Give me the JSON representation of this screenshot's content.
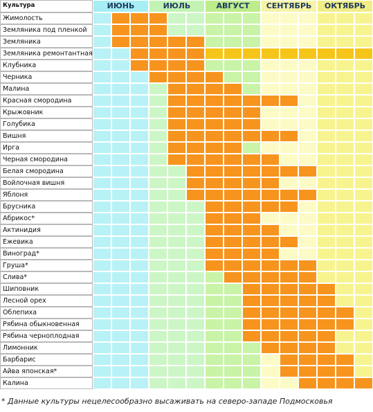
{
  "table": {
    "header": "Культура",
    "months": [
      {
        "name": "ИЮНЬ",
        "color": "#b8f2f6",
        "header_color": "#a6eef4"
      },
      {
        "name": "ИЮЛЬ",
        "color": "#cdf6c6",
        "header_color": "#c2f3b4"
      },
      {
        "name": "АВГУСТ",
        "color": "#c9f3a6",
        "header_color": "#bdec8c"
      },
      {
        "name": "СЕНТЯБРЬ",
        "color": "#fcfbc6",
        "header_color": "#f6f3a6"
      },
      {
        "name": "ОКТЯБРЬ",
        "color": "#f7f48f",
        "header_color": "#f2ee86"
      }
    ],
    "harvest_color": "#f7941d",
    "second_harvest_color": "#f6c51a",
    "rows": [
      {
        "name": "Жимолость",
        "harvest": [
          1,
          3
        ]
      },
      {
        "name": "Земляника под пленкой",
        "harvest": [
          1,
          3
        ]
      },
      {
        "name": "Земляника",
        "harvest": [
          1,
          5
        ]
      },
      {
        "name": "Земляника ремонтантная",
        "harvest": [
          2,
          5
        ],
        "second_harvest": [
          6,
          14
        ]
      },
      {
        "name": "Клубника",
        "harvest": [
          2,
          5
        ]
      },
      {
        "name": "Черника",
        "harvest": [
          3,
          6
        ]
      },
      {
        "name": "Малина",
        "harvest": [
          4,
          7
        ]
      },
      {
        "name": "Красная смородина",
        "harvest": [
          4,
          10
        ]
      },
      {
        "name": "Крыжовник",
        "harvest": [
          4,
          8
        ]
      },
      {
        "name": "Голубика",
        "harvest": [
          4,
          8
        ]
      },
      {
        "name": "Вишня",
        "harvest": [
          4,
          10
        ]
      },
      {
        "name": "Ирга",
        "harvest": [
          4,
          7
        ]
      },
      {
        "name": "Черная смородина",
        "harvest": [
          4,
          9
        ]
      },
      {
        "name": "Белая смородина",
        "harvest": [
          5,
          11
        ]
      },
      {
        "name": "Войлочная вишня",
        "harvest": [
          5,
          9
        ]
      },
      {
        "name": "Яблоня",
        "harvest": [
          5,
          11
        ]
      },
      {
        "name": "Брусника",
        "harvest": [
          6,
          10
        ]
      },
      {
        "name": "Абрикос*",
        "harvest": [
          6,
          8
        ]
      },
      {
        "name": "Актинидия",
        "harvest": [
          6,
          9
        ]
      },
      {
        "name": "Ежевика",
        "harvest": [
          6,
          10
        ]
      },
      {
        "name": "Виноград*",
        "harvest": [
          6,
          9
        ]
      },
      {
        "name": "Груша*",
        "harvest": [
          6,
          11
        ]
      },
      {
        "name": "Слива*",
        "harvest": [
          7,
          11
        ]
      },
      {
        "name": "Шиповник",
        "harvest": [
          8,
          12
        ]
      },
      {
        "name": "Лесной орех",
        "harvest": [
          8,
          12
        ]
      },
      {
        "name": "Облепиха",
        "harvest": [
          8,
          13
        ]
      },
      {
        "name": "Рябина обыкновенная",
        "harvest": [
          8,
          13
        ]
      },
      {
        "name": "Рябина черноплодная",
        "harvest": [
          8,
          12
        ]
      },
      {
        "name": "Лимонник",
        "harvest": [
          9,
          12
        ]
      },
      {
        "name": "Барбарис",
        "harvest": [
          10,
          13
        ]
      },
      {
        "name": "Айва японская*",
        "harvest": [
          10,
          13
        ]
      },
      {
        "name": "Калина",
        "harvest": [
          11,
          14
        ]
      }
    ]
  },
  "footnote": "* Данные культуры нецелесообразно высаживать на северо-западе Подмосковья"
}
